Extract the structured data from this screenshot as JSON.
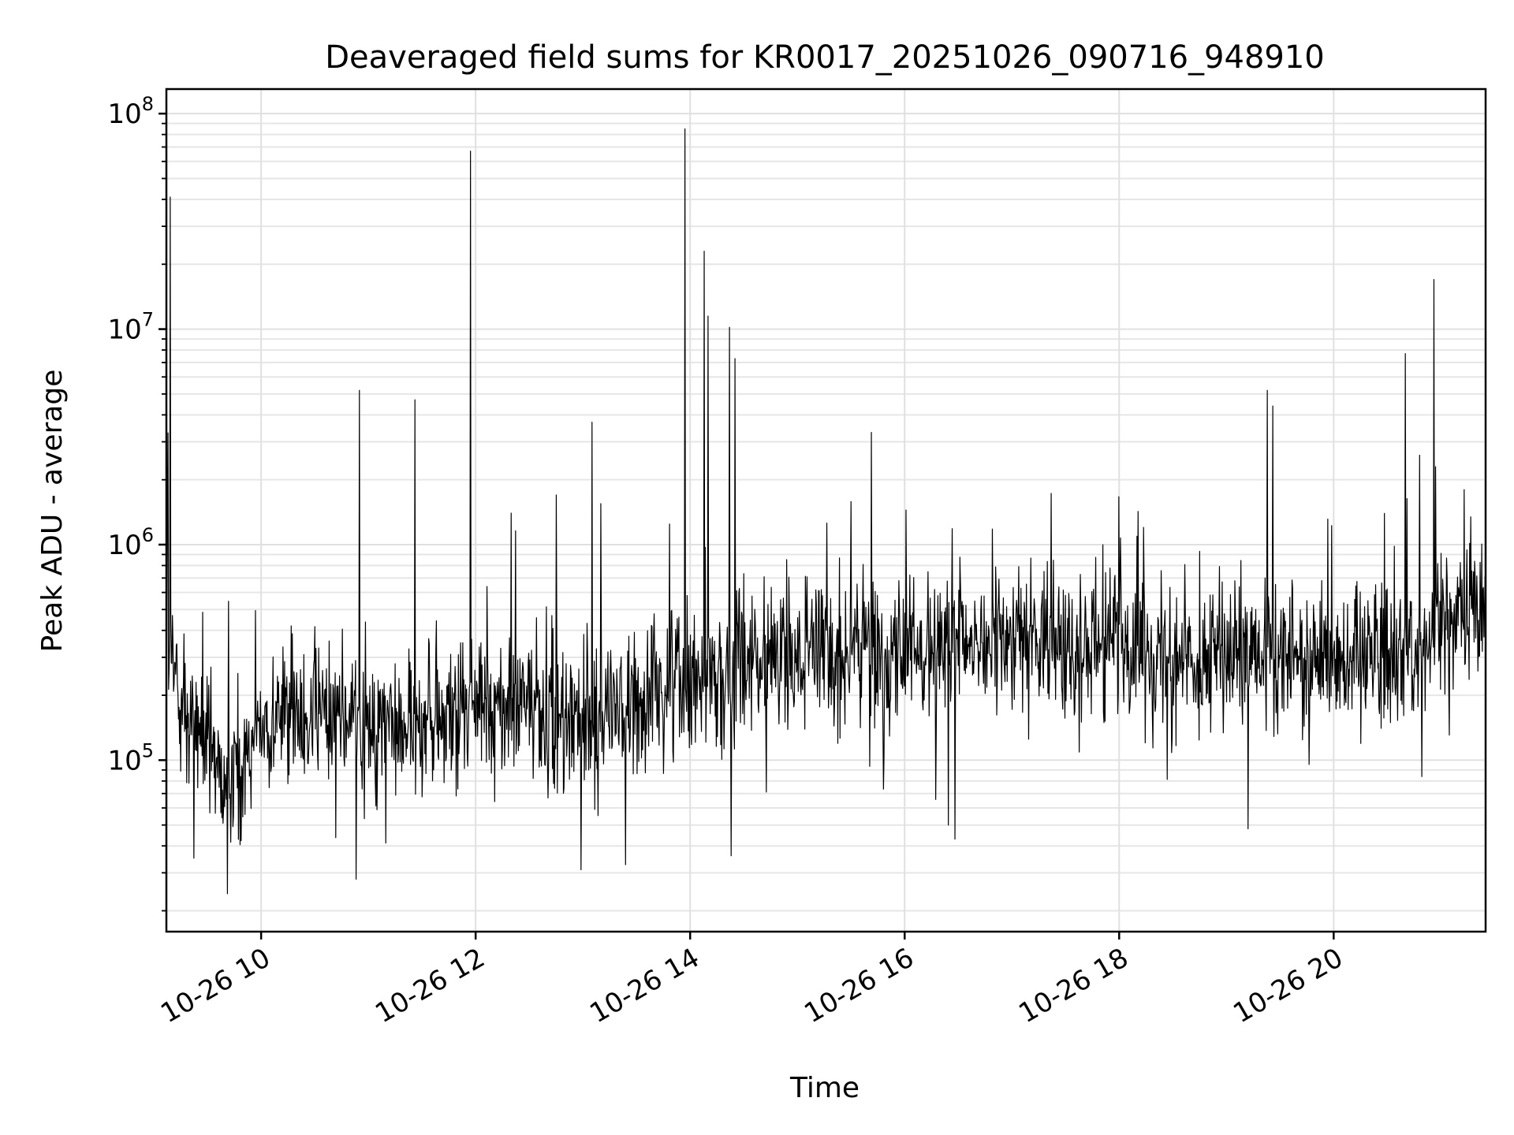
{
  "chart_data": {
    "type": "line",
    "title": "Deaveraged field sums for KR0017_20251026_090716_948910",
    "xlabel": "Time",
    "ylabel": "Peak ADU - average",
    "x_range": [
      "2025-10-26 09:07",
      "2025-10-26 21:25"
    ],
    "y_scale": "log",
    "ylim": [
      16000,
      130000000
    ],
    "grid": true,
    "line_color": "#000000",
    "x_ticks": [
      {
        "time": "2025-10-26 10:00",
        "label": "10-26 10"
      },
      {
        "time": "2025-10-26 12:00",
        "label": "10-26 12"
      },
      {
        "time": "2025-10-26 14:00",
        "label": "10-26 14"
      },
      {
        "time": "2025-10-26 16:00",
        "label": "10-26 16"
      },
      {
        "time": "2025-10-26 18:00",
        "label": "10-26 18"
      },
      {
        "time": "2025-10-26 20:00",
        "label": "10-26 20"
      }
    ],
    "y_ticks": [
      {
        "value": 100000,
        "base": "10",
        "exp": "5"
      },
      {
        "value": 1000000,
        "base": "10",
        "exp": "6"
      },
      {
        "value": 10000000,
        "base": "10",
        "exp": "7"
      },
      {
        "value": 100000000,
        "base": "10",
        "exp": "8"
      }
    ],
    "baseline_profile": [
      {
        "time": "2025-10-26 09:07",
        "value": 300000
      },
      {
        "time": "2025-10-26 09:20",
        "value": 150000
      },
      {
        "time": "2025-10-26 09:40",
        "value": 80000
      },
      {
        "time": "2025-10-26 10:00",
        "value": 150000
      },
      {
        "time": "2025-10-26 10:30",
        "value": 170000
      },
      {
        "time": "2025-10-26 11:00",
        "value": 150000
      },
      {
        "time": "2025-10-26 11:30",
        "value": 140000
      },
      {
        "time": "2025-10-26 12:00",
        "value": 180000
      },
      {
        "time": "2025-10-26 12:30",
        "value": 170000
      },
      {
        "time": "2025-10-26 13:00",
        "value": 150000
      },
      {
        "time": "2025-10-26 13:30",
        "value": 180000
      },
      {
        "time": "2025-10-26 13:50",
        "value": 250000
      },
      {
        "time": "2025-10-26 14:30",
        "value": 280000
      },
      {
        "time": "2025-10-26 15:00",
        "value": 300000
      },
      {
        "time": "2025-10-26 16:00",
        "value": 320000
      },
      {
        "time": "2025-10-26 17:00",
        "value": 360000
      },
      {
        "time": "2025-10-26 18:00",
        "value": 350000
      },
      {
        "time": "2025-10-26 19:00",
        "value": 300000
      },
      {
        "time": "2025-10-26 20:00",
        "value": 300000
      },
      {
        "time": "2025-10-26 20:50",
        "value": 330000
      },
      {
        "time": "2025-10-26 21:10",
        "value": 450000
      },
      {
        "time": "2025-10-26 21:25",
        "value": 550000
      }
    ],
    "peaks": [
      {
        "time": "2025-10-26 09:09",
        "value": 41000000
      },
      {
        "time": "2025-10-26 09:08",
        "value": 3300000
      },
      {
        "time": "2025-10-26 10:55",
        "value": 5200000
      },
      {
        "time": "2025-10-26 11:26",
        "value": 4700000
      },
      {
        "time": "2025-10-26 11:57",
        "value": 67000000
      },
      {
        "time": "2025-10-26 13:05",
        "value": 3700000
      },
      {
        "time": "2025-10-26 13:57",
        "value": 85000000
      },
      {
        "time": "2025-10-26 14:08",
        "value": 23000000
      },
      {
        "time": "2025-10-26 14:10",
        "value": 11500000
      },
      {
        "time": "2025-10-26 14:22",
        "value": 10200000
      },
      {
        "time": "2025-10-26 14:25",
        "value": 7300000
      },
      {
        "time": "2025-10-26 19:23",
        "value": 5200000
      },
      {
        "time": "2025-10-26 19:26",
        "value": 4400000
      },
      {
        "time": "2025-10-26 20:40",
        "value": 7700000
      },
      {
        "time": "2025-10-26 20:48",
        "value": 2600000
      },
      {
        "time": "2025-10-26 20:56",
        "value": 17000000
      },
      {
        "time": "2025-10-26 20:57",
        "value": 2300000
      },
      {
        "time": "2025-10-26 12:20",
        "value": 1400000
      },
      {
        "time": "2025-10-26 12:45",
        "value": 1700000
      },
      {
        "time": "2025-10-26 13:10",
        "value": 1550000
      },
      {
        "time": "2025-10-26 21:13",
        "value": 1800000
      }
    ],
    "dips": [
      {
        "time": "2025-10-26 09:41",
        "value": 24000
      },
      {
        "time": "2025-10-26 10:53",
        "value": 28000
      },
      {
        "time": "2025-10-26 12:59",
        "value": 31000
      },
      {
        "time": "2025-10-26 14:23",
        "value": 36000
      },
      {
        "time": "2025-10-26 16:28",
        "value": 43000
      },
      {
        "time": "2025-10-26 19:12",
        "value": 48000
      }
    ]
  }
}
